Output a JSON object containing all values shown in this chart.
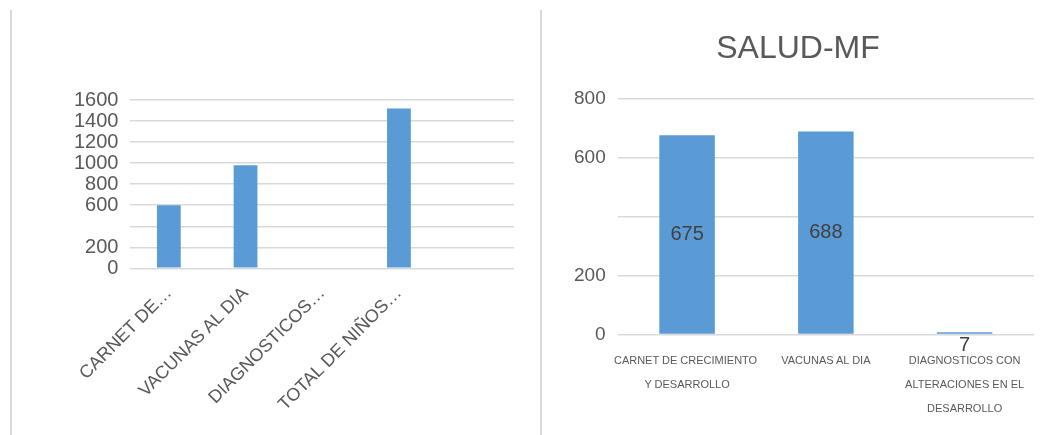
{
  "chart_data": [
    {
      "type": "bar",
      "categories": [
        "CARNET DE…",
        "VACUNAS AL DIA",
        "DIAGNOSTICOS…",
        "TOTAL DE NIÑOS…",
        null
      ],
      "values": [
        600,
        980,
        null,
        1520,
        null
      ],
      "color": "#5b9bd5",
      "ylim": [
        0,
        1600
      ],
      "yticks": [
        0,
        200,
        {
          "value": 400,
          "label": null
        },
        600,
        800,
        1000,
        1200,
        1400,
        1600
      ],
      "grid": "y",
      "legend": false
    },
    {
      "type": "bar",
      "title": "SALUD-MF",
      "categories": [
        "CARNET DE CRECIMIENTO  Y DESARROLLO",
        "VACUNAS AL DIA",
        "DIAGNOSTICOS CON ALTERACIONES EN EL DESARROLLO"
      ],
      "values": [
        675,
        688,
        7
      ],
      "color": "#5b9bd5",
      "data_labels": true,
      "ylim": [
        0,
        800
      ],
      "yticks": [
        0,
        200,
        {
          "value": 400,
          "label": null
        },
        600,
        800
      ],
      "grid": "y",
      "legend": false
    }
  ]
}
